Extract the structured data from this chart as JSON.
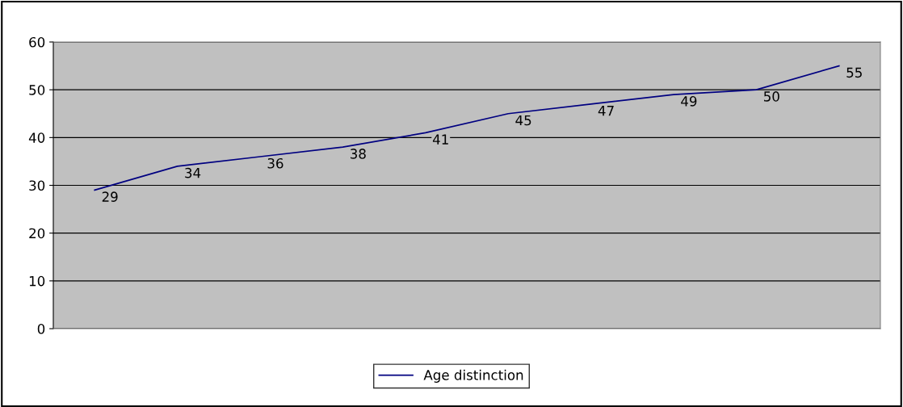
{
  "chart_data": {
    "type": "line",
    "categories": [
      null,
      null,
      null,
      null,
      null,
      null,
      null,
      null,
      null,
      null
    ],
    "series": [
      {
        "name": "Age distinction",
        "color": "#000080",
        "values": [
          29,
          34,
          36,
          38,
          41,
          45,
          47,
          49,
          50,
          55
        ]
      }
    ],
    "ylim": [
      0,
      60
    ],
    "yticks": [
      0,
      10,
      20,
      30,
      40,
      50,
      60
    ],
    "grid": "y",
    "legend": "bottom",
    "data_labels": true,
    "marker": "none",
    "line_style": "solid",
    "tick_labels": "y"
  }
}
